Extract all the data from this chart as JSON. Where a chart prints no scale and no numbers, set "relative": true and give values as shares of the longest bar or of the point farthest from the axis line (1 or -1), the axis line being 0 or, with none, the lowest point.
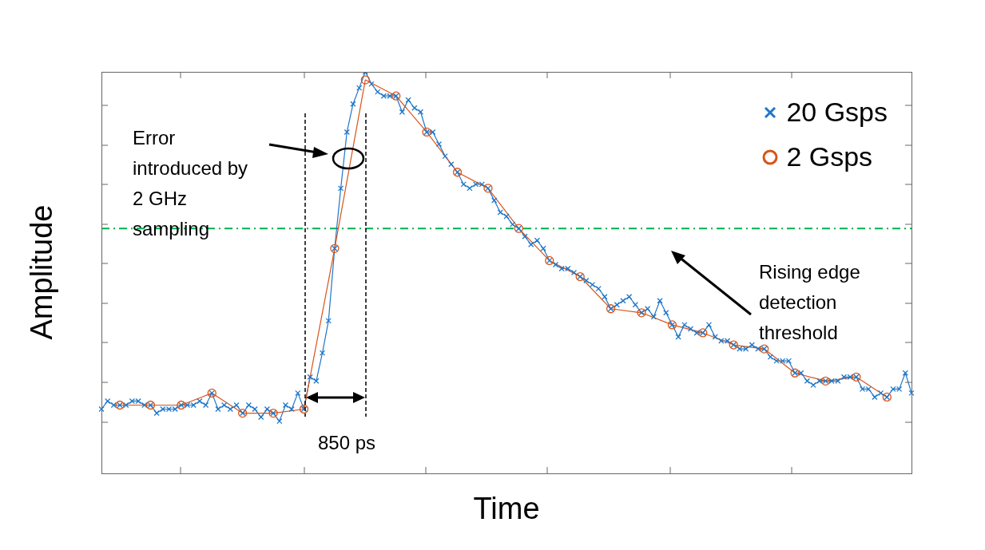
{
  "chart_data": {
    "type": "line",
    "relative": true,
    "xlabel": "Time",
    "ylabel": "Amplitude",
    "legend": "top right",
    "grid": false,
    "categories": [
      null,
      null,
      null,
      null,
      null,
      null,
      null,
      null,
      null,
      null,
      null,
      null,
      null,
      null,
      null,
      null,
      null,
      null,
      null,
      null,
      null,
      null,
      null,
      null,
      null,
      null,
      null,
      null,
      null,
      null,
      null,
      null,
      null,
      null,
      null,
      null,
      null,
      null,
      null,
      null,
      null,
      null,
      null,
      null,
      null,
      null,
      null,
      null,
      null,
      null,
      null,
      null,
      null,
      null,
      null,
      null,
      null,
      null,
      null,
      null,
      null,
      null,
      null,
      null,
      null,
      null,
      null,
      null,
      null,
      null,
      null,
      null,
      null,
      null,
      null,
      null,
      null,
      null,
      null,
      null,
      null,
      null,
      null,
      null,
      null,
      null,
      null,
      null,
      null,
      null,
      null,
      null,
      null,
      null,
      null,
      null,
      null,
      null,
      null,
      null,
      null,
      null,
      null,
      null,
      null,
      null,
      null,
      null,
      null,
      null,
      null,
      null,
      null,
      null,
      null,
      null,
      null,
      null,
      null,
      null,
      null,
      null,
      null,
      null,
      null,
      null,
      null,
      null,
      null,
      null,
      null,
      null,
      null
    ],
    "series": [
      {
        "name": "20 Gsps",
        "color": "#1f77c8",
        "marker": "cross",
        "values": [
          0.16,
          0.18,
          0.17,
          0.17,
          0.17,
          0.18,
          0.18,
          0.17,
          0.17,
          0.15,
          0.16,
          0.16,
          0.16,
          0.17,
          0.17,
          0.17,
          0.18,
          0.17,
          0.2,
          0.16,
          0.17,
          0.16,
          0.17,
          0.15,
          0.17,
          0.16,
          0.14,
          0.16,
          0.15,
          0.13,
          0.17,
          0.16,
          0.2,
          0.16,
          0.24,
          0.23,
          0.3,
          0.38,
          0.56,
          0.71,
          0.85,
          0.92,
          0.96,
          1.0,
          0.97,
          0.95,
          0.94,
          0.94,
          0.94,
          0.9,
          0.93,
          0.91,
          0.9,
          0.85,
          0.85,
          0.82,
          0.79,
          0.77,
          0.75,
          0.72,
          0.71,
          0.72,
          0.72,
          0.71,
          0.68,
          0.65,
          0.64,
          0.62,
          0.61,
          0.59,
          0.57,
          0.58,
          0.56,
          0.53,
          0.52,
          0.51,
          0.51,
          0.5,
          0.49,
          0.48,
          0.47,
          0.46,
          0.44,
          0.41,
          0.42,
          0.43,
          0.44,
          0.42,
          0.4,
          0.41,
          0.39,
          0.43,
          0.4,
          0.37,
          0.34,
          0.37,
          0.36,
          0.35,
          0.35,
          0.37,
          0.34,
          0.33,
          0.33,
          0.32,
          0.31,
          0.31,
          0.32,
          0.31,
          0.31,
          0.29,
          0.28,
          0.28,
          0.28,
          0.25,
          0.25,
          0.23,
          0.22,
          0.23,
          0.23,
          0.23,
          0.23,
          0.24,
          0.24,
          0.24,
          0.21,
          0.21,
          0.19,
          0.2,
          0.19,
          0.21,
          0.21,
          0.25,
          0.2
        ]
      },
      {
        "name": "2 Gsps",
        "color": "#d95319",
        "marker": "circle",
        "values": [
          null,
          null,
          null,
          0.17,
          null,
          null,
          null,
          null,
          0.17,
          null,
          null,
          null,
          null,
          0.17,
          null,
          null,
          null,
          null,
          0.2,
          null,
          null,
          null,
          null,
          0.15,
          null,
          null,
          null,
          null,
          0.15,
          null,
          null,
          null,
          null,
          0.16,
          null,
          null,
          null,
          null,
          0.56,
          null,
          null,
          null,
          null,
          0.98,
          null,
          null,
          null,
          null,
          0.94,
          null,
          null,
          null,
          null,
          0.85,
          null,
          null,
          null,
          null,
          0.75,
          null,
          null,
          null,
          null,
          0.71,
          null,
          null,
          null,
          null,
          0.61,
          null,
          null,
          null,
          null,
          0.53,
          null,
          null,
          null,
          null,
          0.49,
          null,
          null,
          null,
          null,
          0.41,
          null,
          null,
          null,
          null,
          0.4,
          null,
          null,
          null,
          null,
          0.37,
          null,
          null,
          null,
          null,
          0.35,
          null,
          null,
          null,
          null,
          0.32,
          null,
          null,
          null,
          null,
          0.31,
          null,
          null,
          null,
          null,
          0.25,
          null,
          null,
          null,
          null,
          0.23,
          null,
          null,
          null,
          null,
          0.24,
          null,
          null,
          null,
          null,
          0.19,
          null,
          null,
          null,
          null
        ]
      }
    ],
    "ref_lines": [
      {
        "axis": "y",
        "value": 0.61,
        "color": "#00b050",
        "line_style": "dashed"
      }
    ],
    "annotations": [
      "Error introduced by 2 GHz sampling",
      "850 ps",
      "Rising edge detection threshold"
    ]
  }
}
